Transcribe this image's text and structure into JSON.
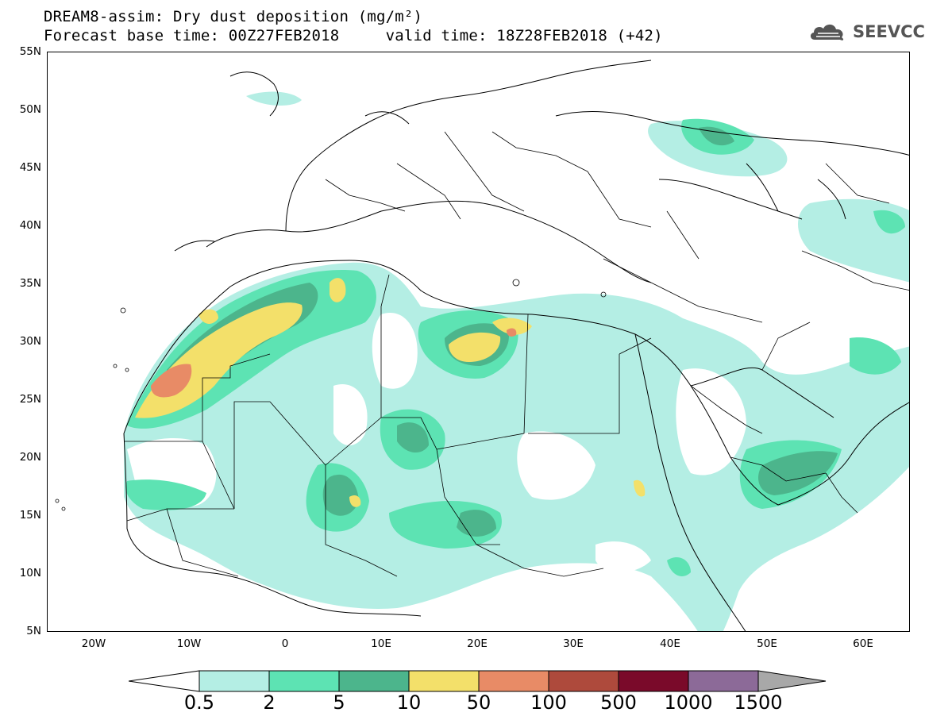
{
  "title": {
    "line1": "DREAM8-assim: Dry dust deposition (mg/m²)",
    "line2": "Forecast base time: 00Z27FEB2018     valid time: 18Z28FEB2018 (+42)"
  },
  "logo": {
    "text": "SEEVCCC",
    "icon": "cloud-icon"
  },
  "map": {
    "projection": "lat-lon",
    "lon_range": [
      -25,
      65
    ],
    "lat_range": [
      5,
      55
    ],
    "lat_labels": [
      "55N",
      "50N",
      "45N",
      "40N",
      "35N",
      "30N",
      "25N",
      "20N",
      "15N",
      "10N",
      "5N"
    ],
    "lon_labels": [
      "20W",
      "10W",
      "0",
      "10E",
      "20E",
      "30E",
      "40E",
      "50E",
      "60E"
    ]
  },
  "colorbar": {
    "labels": [
      "0.5",
      "2",
      "5",
      "10",
      "50",
      "100",
      "500",
      "1000",
      "1500"
    ],
    "colors": [
      "#b4eee4",
      "#5de3b3",
      "#4cb58c",
      "#f3e06a",
      "#e88b66",
      "#ae4a3c",
      "#7a0a2a",
      "#8c6a98"
    ],
    "under_color": "#ffffff",
    "over_color": "#a8a8a8"
  }
}
